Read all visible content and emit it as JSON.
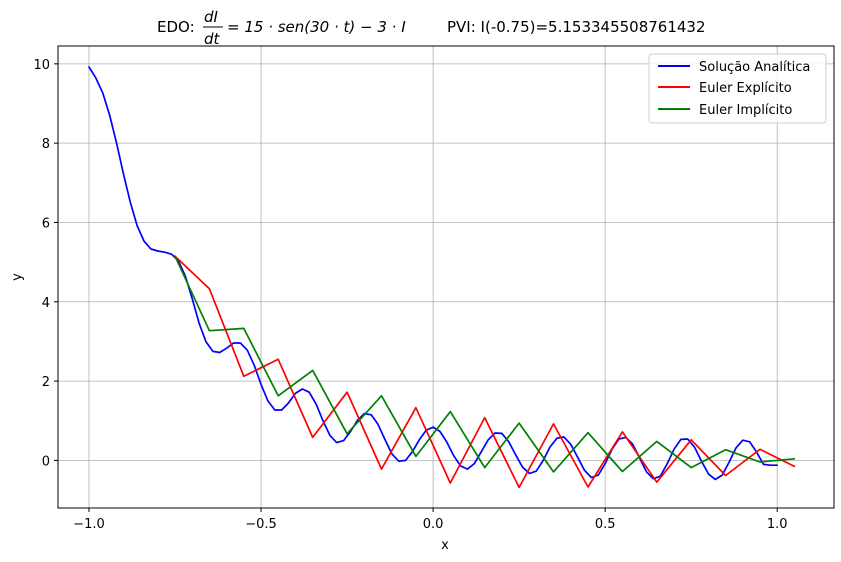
{
  "chart_data": {
    "type": "line",
    "title": {
      "prefix": "EDO: ",
      "numerator": "dI",
      "denominator": "dt",
      "equation_rest": "= 15 · sen(30 · t) − 3 · I",
      "ivp": "PVI: I(-0.75)=5.153345508761432"
    },
    "xlabel": "x",
    "ylabel": "y",
    "xlim": [
      -1.09,
      1.165
    ],
    "ylim": [
      -1.2,
      10.45
    ],
    "xticks": [
      -1.0,
      -0.5,
      0.0,
      0.5,
      1.0
    ],
    "xtick_labels": [
      "−1.0",
      "−0.5",
      "0.0",
      "0.5",
      "1.0"
    ],
    "yticks": [
      0,
      2,
      4,
      6,
      8,
      10
    ],
    "ytick_labels": [
      "0",
      "2",
      "4",
      "6",
      "8",
      "10"
    ],
    "grid": true,
    "legend_position": "top-right",
    "series": [
      {
        "name": "Solução Analítica",
        "color": "#0000ff",
        "x": [
          -1.0,
          -0.98,
          -0.96,
          -0.94,
          -0.92,
          -0.9,
          -0.88,
          -0.86,
          -0.84,
          -0.82,
          -0.8,
          -0.78,
          -0.76,
          -0.74,
          -0.72,
          -0.7,
          -0.68,
          -0.66,
          -0.64,
          -0.62,
          -0.6,
          -0.58,
          -0.56,
          -0.54,
          -0.52,
          -0.5,
          -0.48,
          -0.46,
          -0.44,
          -0.42,
          -0.4,
          -0.38,
          -0.36,
          -0.34,
          -0.32,
          -0.3,
          -0.28,
          -0.26,
          -0.24,
          -0.22,
          -0.2,
          -0.18,
          -0.16,
          -0.14,
          -0.12,
          -0.1,
          -0.08,
          -0.06,
          -0.04,
          -0.02,
          0.0,
          0.02,
          0.04,
          0.06,
          0.08,
          0.1,
          0.12,
          0.14,
          0.16,
          0.18,
          0.2,
          0.22,
          0.24,
          0.26,
          0.28,
          0.3,
          0.32,
          0.34,
          0.36,
          0.38,
          0.4,
          0.42,
          0.44,
          0.46,
          0.48,
          0.5,
          0.52,
          0.54,
          0.56,
          0.58,
          0.6,
          0.62,
          0.64,
          0.66,
          0.68,
          0.7,
          0.72,
          0.74,
          0.76,
          0.78,
          0.8,
          0.82,
          0.84,
          0.86,
          0.88,
          0.9,
          0.92,
          0.94,
          0.96,
          0.98,
          1.0
        ],
        "y": [
          9.92,
          9.64,
          9.27,
          8.71,
          8.01,
          7.23,
          6.51,
          5.92,
          5.53,
          5.33,
          5.28,
          5.25,
          5.2,
          5.03,
          4.65,
          4.08,
          3.46,
          2.99,
          2.75,
          2.72,
          2.83,
          2.96,
          2.96,
          2.78,
          2.4,
          1.92,
          1.5,
          1.27,
          1.27,
          1.45,
          1.69,
          1.8,
          1.72,
          1.42,
          1.0,
          0.63,
          0.45,
          0.5,
          0.73,
          1.01,
          1.18,
          1.15,
          0.91,
          0.53,
          0.17,
          -0.02,
          0.0,
          0.22,
          0.52,
          0.76,
          0.84,
          0.73,
          0.46,
          0.12,
          -0.14,
          -0.22,
          -0.08,
          0.22,
          0.52,
          0.69,
          0.68,
          0.47,
          0.14,
          -0.17,
          -0.33,
          -0.27,
          0.0,
          0.34,
          0.56,
          0.59,
          0.41,
          0.08,
          -0.25,
          -0.43,
          -0.37,
          -0.08,
          0.28,
          0.54,
          0.58,
          0.41,
          0.06,
          -0.29,
          -0.46,
          -0.4,
          -0.09,
          0.28,
          0.53,
          0.54,
          0.33,
          -0.02,
          -0.34,
          -0.48,
          -0.37,
          -0.05,
          0.31,
          0.51,
          0.47,
          0.21,
          -0.1,
          -0.12,
          -0.12
        ]
      },
      {
        "name": "Euler Explícito",
        "color": "#ff0000",
        "x": [
          -0.75,
          -0.65,
          -0.55,
          -0.45,
          -0.35,
          -0.25,
          -0.15,
          -0.05,
          0.05,
          0.15,
          0.25,
          0.35,
          0.45,
          0.55,
          0.65,
          0.75,
          0.85,
          0.95,
          1.05
        ],
        "y": [
          5.15,
          4.33,
          2.12,
          2.55,
          0.58,
          1.72,
          -0.22,
          1.33,
          -0.57,
          1.08,
          -0.68,
          0.92,
          -0.67,
          0.72,
          -0.55,
          0.52,
          -0.38,
          0.28,
          -0.15
        ]
      },
      {
        "name": "Euler Implícito",
        "color": "#008000",
        "x": [
          -0.75,
          -0.65,
          -0.55,
          -0.45,
          -0.35,
          -0.25,
          -0.15,
          -0.05,
          0.05,
          0.15,
          0.25,
          0.35,
          0.45,
          0.55,
          0.65,
          0.75,
          0.85,
          0.95,
          1.05
        ],
        "y": [
          5.15,
          3.27,
          3.33,
          1.63,
          2.27,
          0.67,
          1.63,
          0.1,
          1.23,
          -0.18,
          0.94,
          -0.29,
          0.7,
          -0.28,
          0.48,
          -0.18,
          0.27,
          -0.04,
          0.04
        ]
      }
    ]
  }
}
